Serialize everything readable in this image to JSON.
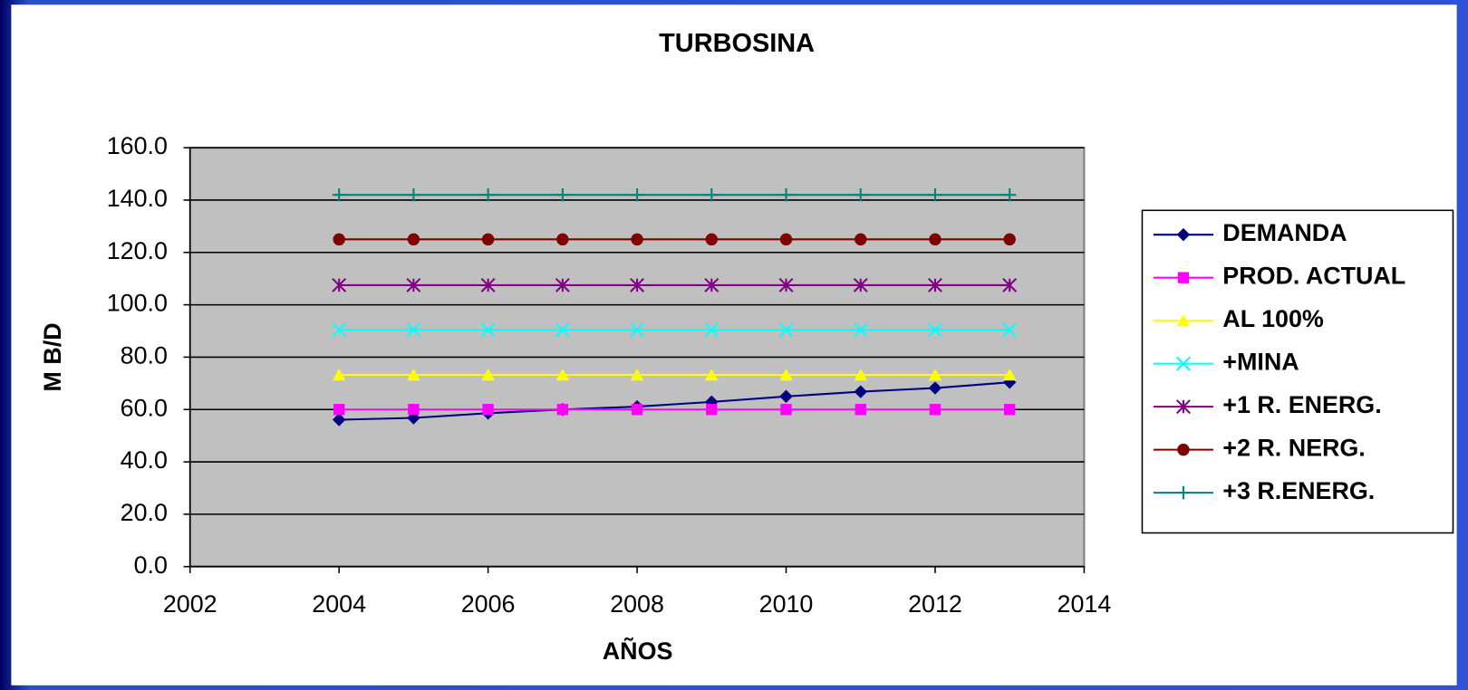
{
  "chart_data": {
    "type": "line",
    "title": "TURBOSINA",
    "x_label": "AÑOS",
    "y_label": "M B/D",
    "x": [
      2004,
      2005,
      2006,
      2007,
      2008,
      2009,
      2010,
      2011,
      2012,
      2013
    ],
    "series": [
      {
        "name": "DEMANDA",
        "color": "#000080",
        "marker": "diamond",
        "values": [
          56.1,
          56.8,
          58.6,
          60,
          61.1,
          62.9,
          65,
          66.8,
          68.2,
          70.4
        ]
      },
      {
        "name": "PROD. ACTUAL",
        "color": "#ff00ff",
        "marker": "square",
        "values": [
          60,
          60,
          60,
          60,
          60,
          60,
          60,
          60,
          60,
          60
        ]
      },
      {
        "name": "AL 100%",
        "color": "#ffff00",
        "marker": "triangle",
        "values": [
          73.2,
          73.2,
          73.2,
          73.2,
          73.2,
          73.2,
          73.2,
          73.2,
          73.2,
          73.2
        ]
      },
      {
        "name": "+MINA",
        "color": "#00ffff",
        "marker": "x",
        "values": [
          90.4,
          90.4,
          90.4,
          90.4,
          90.4,
          90.4,
          90.4,
          90.4,
          90.4,
          90.4
        ]
      },
      {
        "name": "+1 R. ENERG.",
        "color": "#800080",
        "marker": "asterisk",
        "values": [
          107.5,
          107.5,
          107.5,
          107.5,
          107.5,
          107.5,
          107.5,
          107.5,
          107.5,
          107.5
        ]
      },
      {
        "name": "+2 R. NERG.",
        "color": "#800000",
        "marker": "circle",
        "values": [
          125,
          125,
          125,
          125,
          125,
          125,
          125,
          125,
          125,
          125
        ]
      },
      {
        "name": "+3 R.ENERG.",
        "color": "#008080",
        "marker": "plus",
        "values": [
          142,
          142,
          142,
          142,
          142,
          142,
          142,
          142,
          142,
          142
        ]
      }
    ],
    "xlim": [
      2002,
      2014
    ],
    "xticks": [
      2002,
      2004,
      2006,
      2008,
      2010,
      2012,
      2014
    ],
    "ylim": [
      0,
      160
    ],
    "yticks": [
      {
        "value": 0,
        "label": "0.0"
      },
      {
        "value": 20,
        "label": "20.0"
      },
      {
        "value": 40,
        "label": "40.0"
      },
      {
        "value": 60,
        "label": "60.0"
      },
      {
        "value": 80,
        "label": "80.0"
      },
      {
        "value": 100,
        "label": "100.0"
      },
      {
        "value": 120,
        "label": "120.0"
      },
      {
        "value": 140,
        "label": "140.0"
      },
      {
        "value": 160,
        "label": "160.0"
      }
    ],
    "grid": true,
    "legend": "right",
    "plot_background": "#c0c0c0"
  }
}
